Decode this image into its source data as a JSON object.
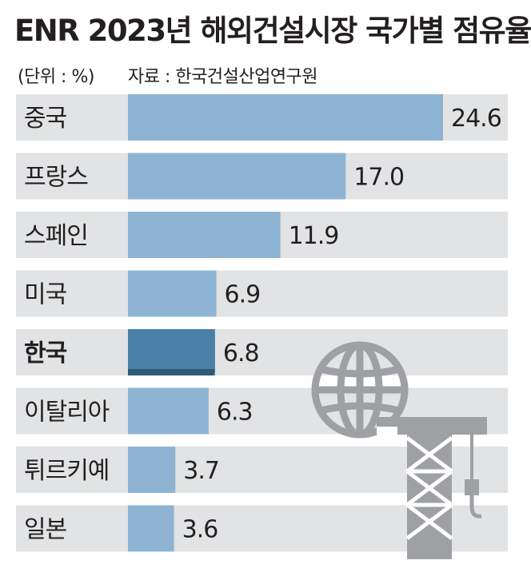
{
  "header": {
    "title": "ENR 2023년 해외건설시장 국가별 점유율",
    "unit": "(단위 : %)",
    "source": "자료 : 한국건설산업연구원"
  },
  "colors": {
    "row_band": "#e2e3e4",
    "bar": "#8fb4d3",
    "bar_highlight": "#4a7fa6",
    "bar_highlight_shadow": "#2f5877",
    "icon": "#9ea0a3"
  },
  "decor": {
    "icon": "globe-crane-icon"
  },
  "chart_data": {
    "type": "bar",
    "orientation": "horizontal",
    "title": "ENR 2023년 해외건설시장 국가별 점유율",
    "unit": "(단위 : %)",
    "source": "자료 : 한국건설산업연구원",
    "categories": [
      "중국",
      "프랑스",
      "스페인",
      "미국",
      "한국",
      "이탈리아",
      "튀르키예",
      "일본"
    ],
    "values": [
      24.6,
      17.0,
      11.9,
      6.9,
      6.8,
      6.3,
      3.7,
      3.6
    ],
    "value_labels": [
      "24.6",
      "17.0",
      "11.9",
      "6.9",
      "6.8",
      "6.3",
      "3.7",
      "3.6"
    ],
    "highlight": "한국",
    "xlim": [
      0,
      24.6
    ],
    "grid": false,
    "legend": "none"
  }
}
